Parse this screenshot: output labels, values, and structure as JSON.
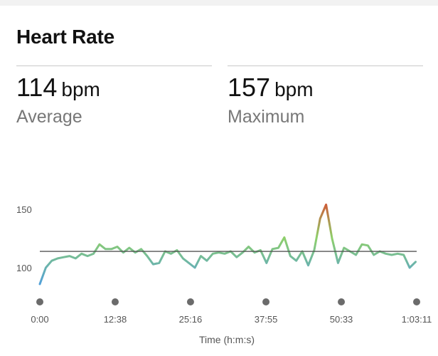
{
  "card": {
    "title": "Heart Rate"
  },
  "stats": {
    "average": {
      "value": "114",
      "unit": "bpm",
      "label": "Average"
    },
    "maximum": {
      "value": "157",
      "unit": "bpm",
      "label": "Maximum"
    }
  },
  "colors": {
    "low": "#4a9ae8",
    "mid": "#8fd06a",
    "high": "#e03b2a",
    "average_line": "#555555",
    "tick_dot": "#6b6b6b"
  },
  "chart_data": {
    "type": "line",
    "title": "Heart Rate",
    "xlabel": "Time (h:m:s)",
    "ylabel": "",
    "x_tick_labels": [
      "0:00",
      "12:38",
      "25:16",
      "37:55",
      "50:33",
      "1:03:11"
    ],
    "x_ticks_seconds": [
      0,
      758,
      1516,
      2275,
      3033,
      3791
    ],
    "y_ticks": [
      100,
      150
    ],
    "y_tick_labels": [
      "100",
      "150"
    ],
    "ylim": [
      80,
      170
    ],
    "xlim": [
      0,
      3791
    ],
    "average_line": 114,
    "series": [
      {
        "name": "Heart Rate (bpm)",
        "x": [
          0,
          60,
          120,
          180,
          240,
          300,
          360,
          420,
          480,
          540,
          600,
          660,
          720,
          780,
          840,
          900,
          960,
          1020,
          1080,
          1140,
          1200,
          1260,
          1320,
          1380,
          1440,
          1500,
          1560,
          1620,
          1680,
          1740,
          1800,
          1860,
          1920,
          1980,
          2040,
          2100,
          2160,
          2220,
          2280,
          2340,
          2400,
          2460,
          2520,
          2580,
          2640,
          2700,
          2760,
          2820,
          2880,
          2940,
          3000,
          3060,
          3120,
          3180,
          3240,
          3300,
          3360,
          3420,
          3480,
          3540,
          3600,
          3660,
          3720,
          3780
        ],
        "values": [
          86,
          100,
          106,
          108,
          109,
          110,
          108,
          112,
          110,
          112,
          120,
          116,
          116,
          118,
          113,
          117,
          113,
          116,
          110,
          103,
          104,
          114,
          112,
          115,
          108,
          104,
          100,
          110,
          106,
          112,
          113,
          112,
          114,
          109,
          113,
          118,
          113,
          115,
          104,
          116,
          117,
          126,
          110,
          106,
          114,
          102,
          115,
          142,
          154,
          125,
          104,
          117,
          114,
          111,
          120,
          119,
          111,
          114,
          112,
          111,
          112,
          111,
          100,
          105
        ]
      }
    ]
  }
}
